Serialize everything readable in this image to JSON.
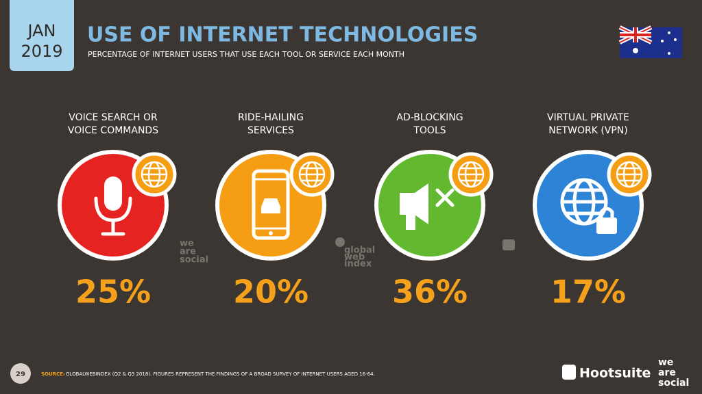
{
  "header": {
    "month": "JAN",
    "year": "2019",
    "title": "USE OF INTERNET TECHNOLOGIES",
    "subtitle": "PERCENTAGE OF INTERNET USERS THAT USE EACH TOOL OR SERVICE EACH MONTH"
  },
  "items": [
    {
      "label": [
        "VOICE SEARCH OR",
        "VOICE COMMANDS"
      ],
      "value": "25%"
    },
    {
      "label": [
        "RIDE-HAILING",
        "SERVICES"
      ],
      "value": "20%"
    },
    {
      "label": [
        "AD-BLOCKING",
        "TOOLS"
      ],
      "value": "36%"
    },
    {
      "label": [
        "VIRTUAL PRIVATE",
        "NETWORK (VPN)"
      ],
      "value": "17%"
    }
  ],
  "watermarks": {
    "we_are_social": [
      "we",
      "are",
      "social"
    ],
    "global_web_index": [
      "global",
      "web",
      "index"
    ]
  },
  "footer": {
    "page": "29",
    "source_label": "SOURCE:",
    "source_text": "GLOBALWEBINDEX (Q2 & Q3 2018). FIGURES REPRESENT THE FINDINGS OF A BROAD SURVEY OF INTERNET USERS AGED 16-64.",
    "brand1": "Hootsuite",
    "brand2": [
      "we",
      "are",
      "social"
    ]
  }
}
